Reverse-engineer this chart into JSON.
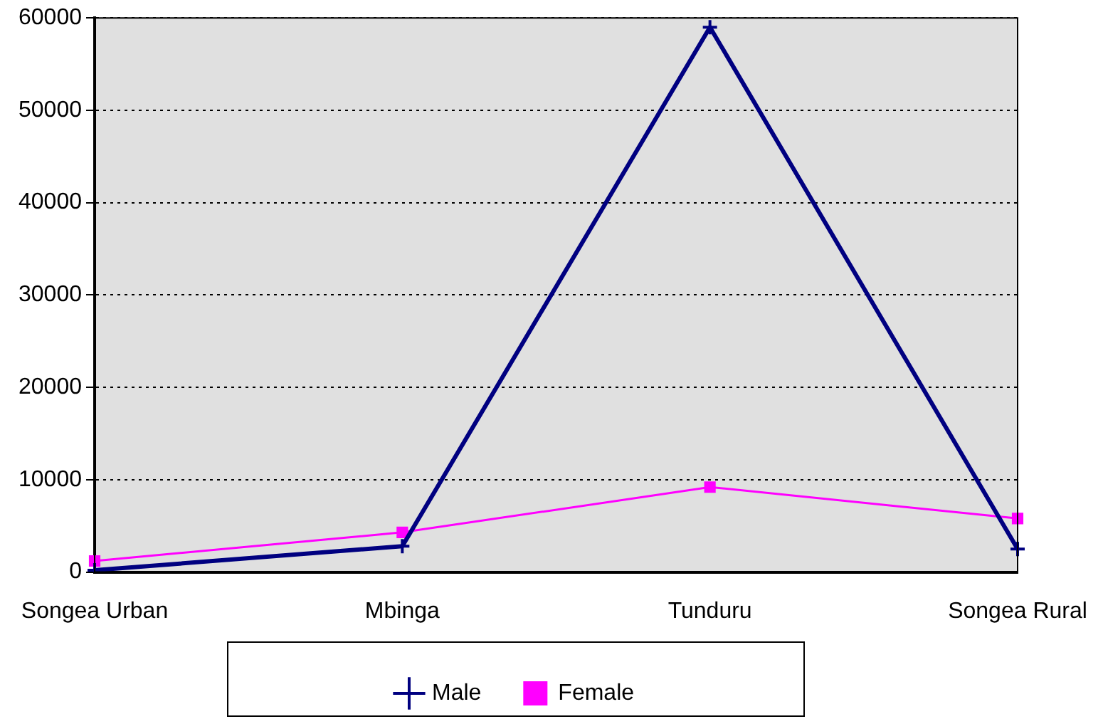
{
  "chart_data": {
    "type": "line",
    "categories": [
      "Songea Urban",
      "Mbinga",
      "Tunduru",
      "Songea Rural"
    ],
    "series": [
      {
        "name": "Male",
        "color": "#000080",
        "values": [
          200,
          2800,
          59000,
          2500
        ],
        "marker": "cross"
      },
      {
        "name": "Female",
        "color": "#ff00ff",
        "values": [
          1200,
          4300,
          9200,
          5800
        ],
        "marker": "square"
      }
    ],
    "ylim": [
      0,
      60000
    ],
    "yticks": [
      0,
      10000,
      20000,
      30000,
      40000,
      50000,
      60000
    ],
    "grid": "y",
    "legend": "bottom",
    "line_style": "solid"
  }
}
